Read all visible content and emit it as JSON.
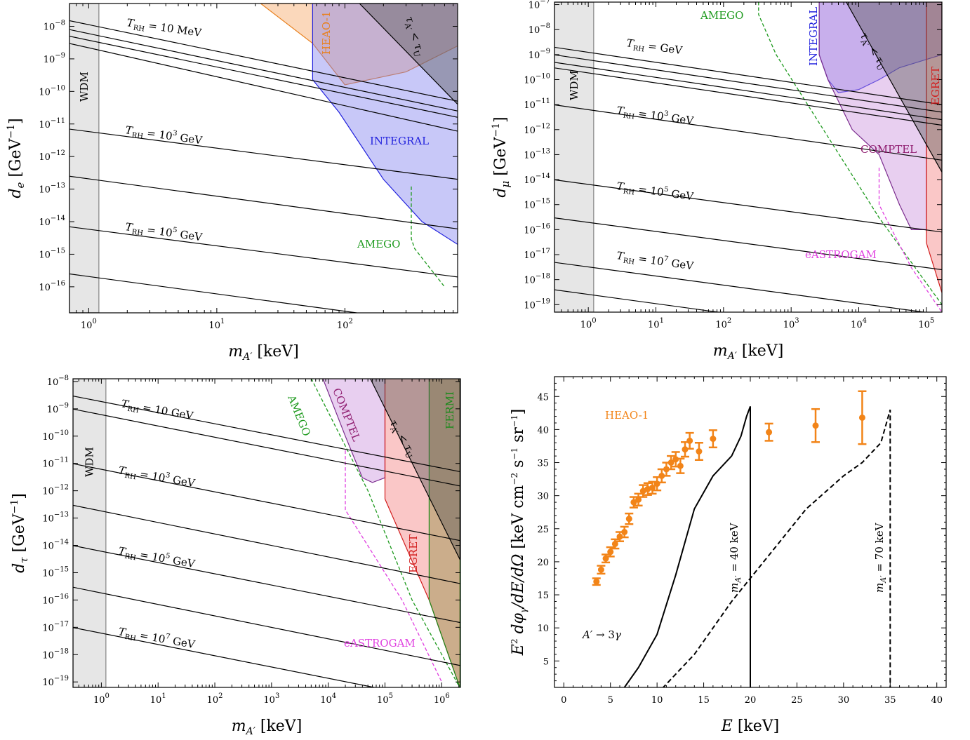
{
  "panels": [
    {
      "id": "de",
      "xlabel": "m_{A'} [keV]",
      "ylabel": "d_e [GeV^{-1}]",
      "x_log_range": [
        -0.15,
        2.88
      ],
      "y_log_range": [
        -16.8,
        -7.3
      ],
      "x_ticks": [
        0,
        1,
        2
      ],
      "y_ticks": [
        -16,
        -15,
        -14,
        -13,
        -12,
        -11,
        -10,
        -9,
        -8
      ]
    },
    {
      "id": "dmu",
      "xlabel": "m_{A'} [keV]",
      "ylabel": "d_μ [GeV^{-1}]",
      "x_log_range": [
        -0.5,
        5.23
      ],
      "y_log_range": [
        -19.3,
        -6.9
      ],
      "x_ticks": [
        0,
        1,
        2,
        3,
        4,
        5
      ],
      "y_ticks": [
        -19,
        -18,
        -17,
        -16,
        -15,
        -14,
        -13,
        -12,
        -11,
        -10,
        -9,
        -8,
        -7
      ]
    },
    {
      "id": "dtau",
      "xlabel": "m_{A'} [keV]",
      "ylabel": "d_τ [GeV^{-1}]",
      "x_log_range": [
        -0.5,
        6.33
      ],
      "y_log_range": [
        -19.2,
        -7.9
      ],
      "x_ticks": [
        0,
        1,
        2,
        3,
        4,
        5,
        6
      ],
      "y_ticks": [
        -19,
        -18,
        -17,
        -16,
        -15,
        -14,
        -13,
        -12,
        -11,
        -10,
        -9,
        -8
      ]
    }
  ],
  "chart_data": [
    {
      "type": "area",
      "panel": "de",
      "xlabel": "m_{A'} [keV]",
      "ylabel": "d_e [GeV^{-1}]",
      "x_scale": "log",
      "y_scale": "log",
      "xlim": [
        0.7,
        760
      ],
      "ylim": [
        1.6e-17,
        5e-08
      ],
      "regions": [
        {
          "name": "WDM",
          "color": "#e6e6e6",
          "x_max": 1.2
        },
        {
          "name": "HEAO-1",
          "color": "#f5a25c",
          "edge": "#e8801e",
          "x": [
            22,
            56,
            100,
            300,
            760,
            760,
            22
          ],
          "y": [
            5e-08,
            3e-09,
            1.6e-10,
            4e-10,
            2.5e-09,
            5e-08,
            5e-08
          ]
        },
        {
          "name": "INTEGRAL",
          "color": "#7b7bef",
          "edge": "#2222dd",
          "x": [
            56,
            56,
            90,
            200,
            400,
            760,
            760,
            56
          ],
          "y": [
            5e-08,
            2.3e-10,
            2.3e-11,
            2e-13,
            1e-14,
            2e-15,
            5e-08,
            5e-08
          ]
        },
        {
          "name": "τ_A' < τ_U",
          "color": "#555555",
          "edge": "#000000",
          "x": [
            130,
            760,
            760
          ],
          "y": [
            5e-08,
            4e-11,
            5e-08
          ]
        }
      ],
      "projections": [
        {
          "name": "AMEGO",
          "color": "#1e9a1e",
          "x": [
            330,
            330,
            350,
            600
          ],
          "y": [
            1.2e-13,
            3e-15,
            1.5e-15,
            1e-16
          ]
        }
      ],
      "series": [
        {
          "name": "T_RH = 10 MeV",
          "x": [
            0.7,
            760
          ],
          "y": [
            1.5e-08,
            5e-11
          ]
        },
        {
          "x": [
            0.7,
            760
          ],
          "y": [
            8e-09,
            2.5e-11
          ]
        },
        {
          "x": [
            0.7,
            760
          ],
          "y": [
            5e-09,
            1.6e-11
          ]
        },
        {
          "x": [
            0.7,
            760
          ],
          "y": [
            3e-09,
            6e-12
          ]
        },
        {
          "name": "T_RH = 10^3 GeV",
          "x": [
            0.7,
            760
          ],
          "y": [
            7e-12,
            2e-13
          ]
        },
        {
          "x": [
            0.7,
            760
          ],
          "y": [
            2.5e-13,
            6e-15
          ]
        },
        {
          "name": "T_RH = 10^5 GeV",
          "x": [
            0.7,
            760
          ],
          "y": [
            7e-15,
            2e-16
          ]
        },
        {
          "x": [
            0.7,
            760
          ],
          "y": [
            2.5e-16,
            6e-18
          ]
        }
      ]
    },
    {
      "type": "area",
      "panel": "dmu",
      "xlabel": "m_{A'} [keV]",
      "ylabel": "d_μ [GeV^{-1}]",
      "x_scale": "log",
      "y_scale": "log",
      "xlim": [
        0.3,
        170000
      ],
      "ylim": [
        5e-20,
        1.3e-07
      ],
      "regions": [
        {
          "name": "WDM",
          "color": "#e6e6e6",
          "x_max": 1.2
        },
        {
          "name": "INTEGRAL",
          "color": "#7b7bef",
          "edge": "#2222dd",
          "x": [
            1100,
            2600,
            2600,
            3500,
            5000,
            10000,
            20000,
            40000,
            170000,
            170000,
            1100
          ],
          "y": [
            1.3e-07,
            1.3e-07,
            1e-09,
            1e-10,
            3e-11,
            4e-11,
            1e-10,
            3e-10,
            1e-09,
            1.3e-07,
            1.3e-07
          ]
        },
        {
          "name": "COMPTEL",
          "color": "#c78ddb",
          "edge": "#7b2c8e",
          "x": [
            2600,
            3500,
            8000,
            20000,
            40000,
            60000,
            100000,
            100000,
            2600
          ],
          "y": [
            1e-09,
            1e-10,
            1e-12,
            1e-13,
            1e-15,
            1e-16,
            1e-16,
            1.3e-07,
            1.3e-07
          ]
        },
        {
          "name": "EGRET",
          "color": "#f47a7a",
          "edge": "#d21c1c",
          "x": [
            100000,
            100000,
            170000,
            170000,
            100000
          ],
          "y": [
            1.3e-07,
            3e-17,
            3e-19,
            1.3e-07,
            1.3e-07
          ]
        },
        {
          "name": "τ_A' < τ_U",
          "color": "#555555",
          "edge": "#000000",
          "x": [
            6500,
            170000,
            170000
          ],
          "y": [
            1.3e-07,
            2e-14,
            1.3e-07
          ]
        }
      ],
      "projections": [
        {
          "name": "AMEGO",
          "color": "#1e9a1e",
          "x": [
            330,
            330,
            600,
            3000,
            20000,
            170000
          ],
          "y": [
            1.3e-07,
            4e-08,
            1e-09,
            1e-12,
            3e-16,
            1e-19
          ]
        },
        {
          "name": "eASTROGAM",
          "color": "#e040e0",
          "x": [
            20000,
            20000,
            25000,
            60000,
            170000
          ],
          "y": [
            3e-14,
            1e-15,
            3e-16,
            3e-18,
            5e-20
          ]
        }
      ],
      "series": [
        {
          "name": "T_RH = GeV",
          "x": [
            0.3,
            170000
          ],
          "y": [
            2e-09,
            1e-11
          ]
        },
        {
          "x": [
            0.3,
            170000
          ],
          "y": [
            1e-09,
            5e-12
          ]
        },
        {
          "x": [
            0.3,
            170000
          ],
          "y": [
            5e-10,
            2.5e-12
          ]
        },
        {
          "x": [
            0.3,
            170000
          ],
          "y": [
            3e-10,
            1.5e-12
          ]
        },
        {
          "name": "T_RH = 10^3 GeV",
          "x": [
            0.3,
            170000
          ],
          "y": [
            1e-11,
            6e-14
          ]
        },
        {
          "name": "T_RH = 10^5 GeV",
          "x": [
            0.3,
            170000
          ],
          "y": [
            1e-14,
            8e-17
          ]
        },
        {
          "x": [
            0.3,
            170000
          ],
          "y": [
            3e-16,
            2.5e-18
          ]
        },
        {
          "name": "T_RH = 10^7 GeV",
          "x": [
            0.3,
            170000
          ],
          "y": [
            5e-18,
            4e-20
          ]
        },
        {
          "x": [
            0.3,
            170000
          ],
          "y": [
            4e-19,
            3e-21
          ]
        }
      ]
    },
    {
      "type": "area",
      "panel": "dtau",
      "xlabel": "m_{A'} [keV]",
      "ylabel": "d_τ [GeV^{-1}]",
      "x_scale": "log",
      "y_scale": "log",
      "xlim": [
        0.3,
        2100000
      ],
      "ylim": [
        6e-20,
        1.3e-08
      ],
      "regions": [
        {
          "name": "WDM",
          "color": "#e6e6e6",
          "x_max": 1.2
        },
        {
          "name": "COMPTEL",
          "color": "#c78ddb",
          "edge": "#7b2c8e",
          "x": [
            8000,
            20000,
            40000,
            60000,
            100000,
            100000,
            8000
          ],
          "y": [
            1.3e-08,
            1e-10,
            3e-12,
            2e-12,
            3e-12,
            1.3e-08,
            1.3e-08
          ]
        },
        {
          "name": "EGRET",
          "color": "#f47a7a",
          "edge": "#d21c1c",
          "x": [
            100000,
            100000,
            600000,
            2100000,
            2100000,
            100000
          ],
          "y": [
            1.3e-08,
            5e-13,
            1e-16,
            6e-20,
            1.3e-08,
            1.3e-08
          ]
        },
        {
          "name": "FERMI",
          "color": "#8a8a3a",
          "edge": "#1a8a1a",
          "x": [
            600000,
            600000,
            2100000,
            2100000,
            600000
          ],
          "y": [
            1.3e-08,
            1e-16,
            6e-20,
            1.3e-08,
            1.3e-08
          ]
        },
        {
          "name": "τ_A' < τ_U",
          "color": "#555555",
          "edge": "#000000",
          "x": [
            55000,
            2100000,
            2100000
          ],
          "y": [
            1.3e-08,
            3e-15,
            1.3e-08
          ]
        }
      ],
      "projections": [
        {
          "name": "AMEGO",
          "color": "#1e9a1e",
          "x": [
            5000,
            50000,
            300000,
            2100000
          ],
          "y": [
            1.3e-08,
            1e-12,
            1e-16,
            6e-20
          ]
        },
        {
          "name": "eASTROGAM",
          "color": "#e040e0",
          "x": [
            20000,
            20000,
            200000,
            1000000
          ],
          "y": [
            3e-11,
            2e-13,
            1e-16,
            1e-19
          ]
        }
      ],
      "series": [
        {
          "name": "T_RH = 10 GeV",
          "x": [
            0.3,
            2100000
          ],
          "y": [
            3e-09,
            5e-12
          ]
        },
        {
          "x": [
            0.3,
            2100000
          ],
          "y": [
            1e-09,
            1.5e-12
          ]
        },
        {
          "name": "T_RH = 10^3 GeV",
          "x": [
            0.3,
            2100000
          ],
          "y": [
            1e-11,
            1.5e-14
          ]
        },
        {
          "x": [
            0.3,
            2100000
          ],
          "y": [
            3e-13,
            4e-16
          ]
        },
        {
          "name": "T_RH = 10^5 GeV",
          "x": [
            0.3,
            2100000
          ],
          "y": [
            1e-14,
            1.5e-17
          ]
        },
        {
          "x": [
            0.3,
            2100000
          ],
          "y": [
            3e-16,
            4e-19
          ]
        },
        {
          "name": "T_RH = 10^7 GeV",
          "x": [
            0.3,
            2100000
          ],
          "y": [
            1e-17,
            1.5e-20
          ]
        }
      ]
    },
    {
      "type": "scatter",
      "panel": "spectrum",
      "xlabel": "E [keV]",
      "ylabel": "E^2 dφ_γ/dE/dΩ [keV cm^{-2} s^{-1} sr^{-1}]",
      "xlim": [
        -1,
        41
      ],
      "ylim": [
        1,
        48
      ],
      "x_ticks": [
        0,
        5,
        10,
        15,
        20,
        25,
        30,
        35,
        40
      ],
      "y_ticks": [
        5,
        10,
        15,
        20,
        25,
        30,
        35,
        40,
        45
      ],
      "series": [
        {
          "name": "HEAO-1",
          "color": "#f28418",
          "points": [
            [
              3.5,
              17.0,
              0.5
            ],
            [
              4.0,
              18.8,
              0.6
            ],
            [
              4.5,
              20.5,
              0.6
            ],
            [
              5.0,
              21.5,
              0.7
            ],
            [
              5.5,
              22.7,
              0.7
            ],
            [
              6.0,
              23.8,
              0.7
            ],
            [
              6.5,
              24.5,
              0.8
            ],
            [
              7.0,
              26.5,
              0.8
            ],
            [
              7.5,
              29.0,
              0.8
            ],
            [
              8.0,
              29.4,
              0.9
            ],
            [
              8.5,
              30.7,
              0.9
            ],
            [
              9.0,
              31.0,
              0.9
            ],
            [
              9.5,
              31.2,
              0.9
            ],
            [
              10.0,
              31.8,
              1.0
            ],
            [
              10.5,
              33.0,
              1.0
            ],
            [
              11.0,
              34.0,
              1.0
            ],
            [
              11.5,
              35.0,
              1.0
            ],
            [
              12.0,
              35.5,
              1.1
            ],
            [
              12.5,
              34.5,
              1.1
            ],
            [
              13.0,
              37.0,
              1.1
            ],
            [
              13.5,
              38.3,
              1.2
            ],
            [
              14.5,
              36.7,
              1.3
            ],
            [
              16.0,
              38.6,
              1.3
            ],
            [
              22.0,
              39.6,
              1.3
            ],
            [
              27.0,
              40.6,
              2.5
            ],
            [
              32.0,
              41.8,
              4.0
            ]
          ]
        }
      ],
      "curves": [
        {
          "name": "m_{A'} = 40 keV",
          "style": "solid",
          "x": [
            6,
            8,
            10,
            12,
            14,
            16,
            18,
            19,
            19.6,
            20,
            20
          ],
          "y": [
            0,
            4,
            9,
            18,
            28,
            33,
            36,
            39,
            42,
            43.5,
            0
          ]
        },
        {
          "name": "m_{A'} = 70 keV",
          "style": "dashed",
          "x": [
            10,
            14,
            18,
            22,
            26,
            30,
            32,
            34,
            34.6,
            35,
            35
          ],
          "y": [
            0,
            6,
            14,
            21,
            28,
            33,
            35,
            38,
            41,
            43,
            0
          ]
        }
      ],
      "annotations": [
        "HEAO-1",
        "A' → 3γ",
        "m_{A'} = 40 keV",
        "m_{A'} = 70 keV"
      ]
    }
  ]
}
